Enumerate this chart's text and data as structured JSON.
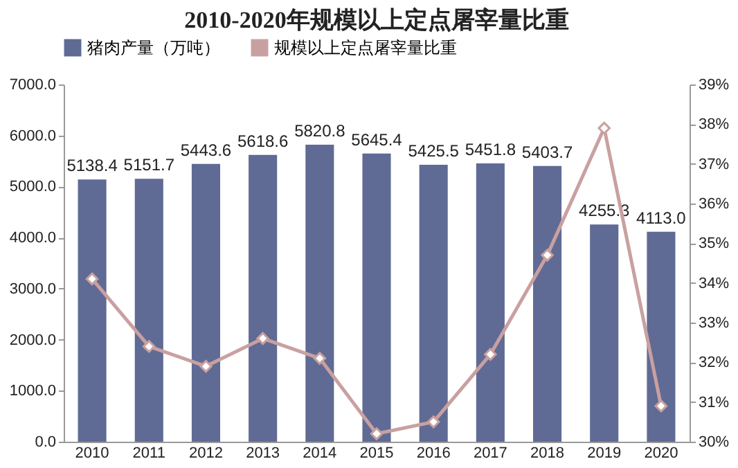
{
  "chart_data": {
    "type": "bar",
    "title": "2010-2020年规模以上定点屠宰量比重",
    "categories": [
      "2010",
      "2011",
      "2012",
      "2013",
      "2014",
      "2015",
      "2016",
      "2017",
      "2018",
      "2019",
      "2020"
    ],
    "series": [
      {
        "name": "猪肉产量（万吨）",
        "color": "#5f6b94",
        "values": [
          5138.4,
          5151.7,
          5443.6,
          5618.6,
          5820.8,
          5645.4,
          5425.5,
          5451.8,
          5403.7,
          4255.3,
          4113.0
        ],
        "value_labels": [
          "5138.4",
          "5151.7",
          "5443.6",
          "5618.6",
          "5820.8",
          "5645.4",
          "5425.5",
          "5451.8",
          "5403.7",
          "4255.3",
          "4113.0"
        ]
      },
      {
        "name": "规模以上定点屠宰量比重",
        "type": "line",
        "axis": "y2",
        "color": "#c9a0a0",
        "marker": "diamond",
        "line_style": "solid",
        "values": [
          34.1,
          32.4,
          31.9,
          32.6,
          32.1,
          30.2,
          30.5,
          32.2,
          34.7,
          37.9,
          30.9
        ]
      }
    ],
    "ylim": [
      0,
      7000
    ],
    "yticks": [
      {
        "value": 0,
        "label": "0.0"
      },
      {
        "value": 1000,
        "label": "1000.0"
      },
      {
        "value": 2000,
        "label": "2000.0"
      },
      {
        "value": 3000,
        "label": "3000.0"
      },
      {
        "value": 4000,
        "label": "4000.0"
      },
      {
        "value": 5000,
        "label": "5000.0"
      },
      {
        "value": 6000,
        "label": "6000.0"
      },
      {
        "value": 7000,
        "label": "7000.0"
      }
    ],
    "y2lim": [
      30,
      39
    ],
    "y2ticks": [
      {
        "value": 30,
        "label": "30%"
      },
      {
        "value": 31,
        "label": "31%"
      },
      {
        "value": 32,
        "label": "32%"
      },
      {
        "value": 33,
        "label": "33%"
      },
      {
        "value": 34,
        "label": "34%"
      },
      {
        "value": 35,
        "label": "35%"
      },
      {
        "value": 36,
        "label": "36%"
      },
      {
        "value": 37,
        "label": "37%"
      },
      {
        "value": 38,
        "label": "38%"
      },
      {
        "value": 39,
        "label": "39%"
      }
    ],
    "legend": "top",
    "grid": false
  }
}
